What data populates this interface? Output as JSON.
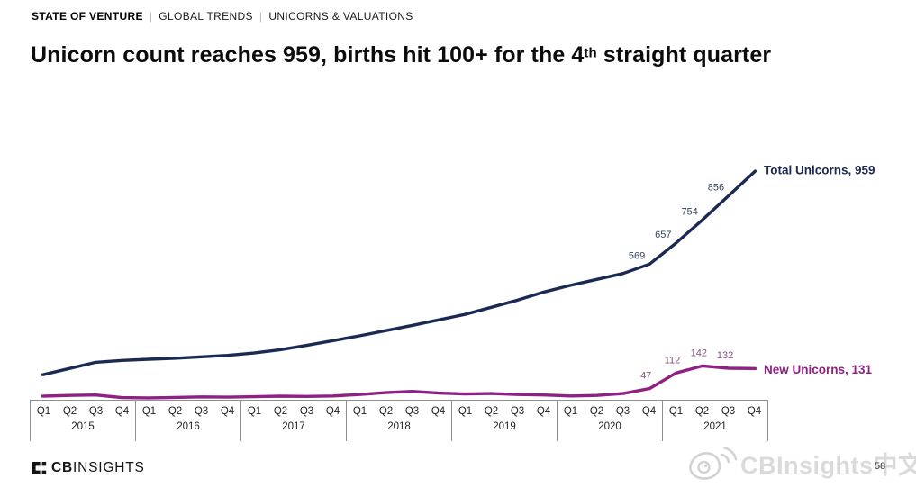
{
  "header": {
    "kicker": {
      "brand": "STATE OF VENTURE",
      "separator": "|",
      "section": "GLOBAL TRENDS",
      "subsection": "UNICORNS & VALUATIONS"
    },
    "title": {
      "before_sup": "Unicorn count reaches 959, births hit 100+ for the 4",
      "sup": "th",
      "after_sup": " straight quarter"
    }
  },
  "chart_data": {
    "type": "line",
    "title": "Unicorn count reaches 959, births hit 100+ for the 4th straight quarter",
    "x_years": [
      "2015",
      "2016",
      "2017",
      "2018",
      "2019",
      "2020",
      "2021"
    ],
    "x_quarters": [
      "Q1",
      "Q2",
      "Q3",
      "Q4"
    ],
    "xlabel": "",
    "ylabel": "",
    "ylim": [
      0,
      1000
    ],
    "grid": false,
    "legend_position": "right-of-line-end",
    "series": [
      {
        "name": "Total Unicorns",
        "legend_label": "Total Unicorns, 959",
        "color": "#1b2a52",
        "label_position": "left-above",
        "values": [
          105,
          131,
          157,
          165,
          170,
          174,
          180,
          186,
          196,
          210,
          228,
          248,
          268,
          290,
          312,
          335,
          358,
          388,
          418,
          452,
          480,
          505,
          530,
          569,
          657,
          754,
          856,
          959
        ],
        "labeled_points": [
          {
            "i": 23,
            "text": "569"
          },
          {
            "i": 24,
            "text": "657"
          },
          {
            "i": 25,
            "text": "754"
          },
          {
            "i": 26,
            "text": "856"
          }
        ]
      },
      {
        "name": "New Unicorns",
        "legend_label": "New Unicorns, 131",
        "color": "#8e2183",
        "label_position": "above",
        "values": [
          15,
          18,
          20,
          9,
          8,
          10,
          12,
          11,
          13,
          15,
          14,
          16,
          22,
          30,
          35,
          28,
          24,
          26,
          22,
          20,
          16,
          18,
          26,
          47,
          112,
          142,
          132,
          131
        ],
        "labeled_points": [
          {
            "i": 23,
            "text": "47"
          },
          {
            "i": 24,
            "text": "112"
          },
          {
            "i": 25,
            "text": "142"
          },
          {
            "i": 26,
            "text": "132"
          }
        ]
      }
    ]
  },
  "footer": {
    "logo_bold": "CB",
    "logo_light": "INSIGHTS",
    "watermark_text": "CBInsights中文",
    "page_number": "58"
  },
  "colors": {
    "total_line": "#1b2a52",
    "new_line": "#8e2183",
    "axis_border": "#8f8f8f",
    "watermark": "#dadada"
  }
}
